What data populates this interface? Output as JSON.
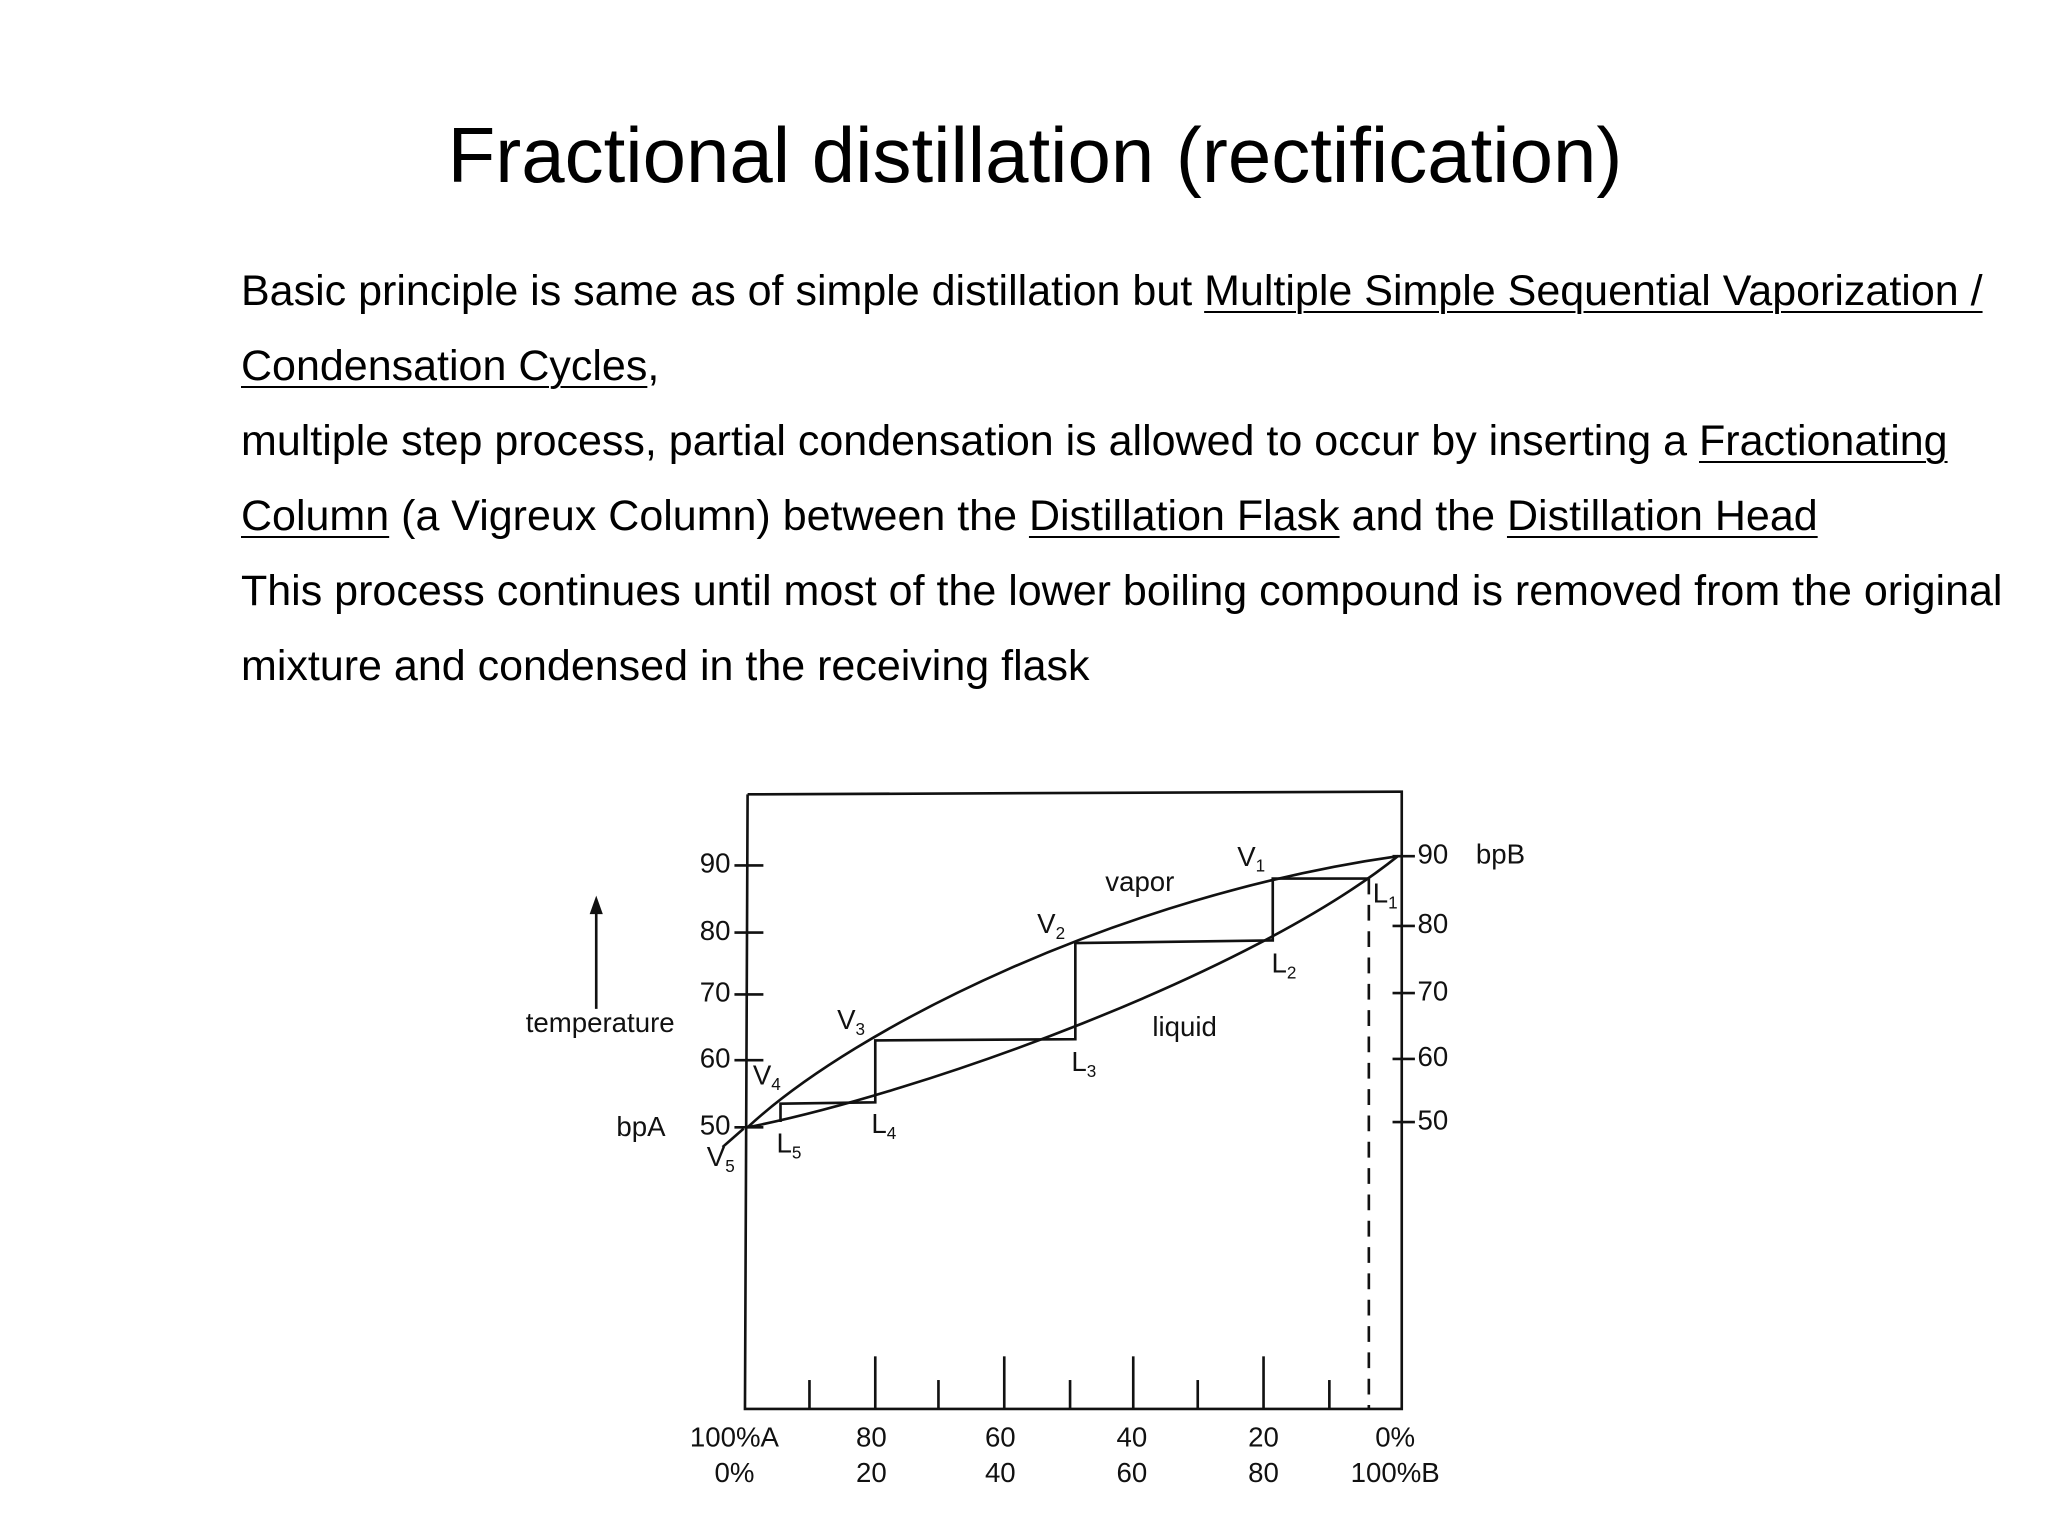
{
  "title": "Fractional distillation (rectification)",
  "paragraphs": [
    {
      "parts": [
        {
          "text": "Basic principle is same as of simple distillation but "
        },
        {
          "text": "Multiple Simple Sequential Vaporization / Condensation Cycles",
          "underline": true
        },
        {
          "text": ","
        }
      ]
    },
    {
      "parts": [
        {
          "text": "multiple step process, partial condensation is allowed to occur by inserting a "
        },
        {
          "text": "Fractionating Column",
          "underline": true
        },
        {
          "text": " (a Vigreux Column) between the "
        },
        {
          "text": "Distillation Flask",
          "underline": true
        },
        {
          "text": " and the "
        },
        {
          "text": "Distillation Head",
          "underline": true
        }
      ]
    },
    {
      "parts": [
        {
          "text": "This process continues until most of the lower boiling compound is removed from the original mixture and condensed in the receiving flask"
        }
      ]
    }
  ],
  "diagram": {
    "left_ticks": [
      "90",
      "80",
      "70",
      "60",
      "50"
    ],
    "right_ticks": [
      "90",
      "80",
      "70",
      "60",
      "50"
    ],
    "axis_label": "temperature",
    "bp_a": "bpA",
    "bp_b": "bpB",
    "vapor_label": "vapor",
    "liquid_label": "liquid",
    "points": [
      {
        "main": "V",
        "sub": "1"
      },
      {
        "main": "V",
        "sub": "2"
      },
      {
        "main": "V",
        "sub": "3"
      },
      {
        "main": "V",
        "sub": "4"
      },
      {
        "main": "V",
        "sub": "5"
      },
      {
        "main": "L",
        "sub": "1"
      },
      {
        "main": "L",
        "sub": "2"
      },
      {
        "main": "L",
        "sub": "3"
      },
      {
        "main": "L",
        "sub": "4"
      },
      {
        "main": "L",
        "sub": "5"
      }
    ],
    "composition": [
      {
        "a": "100%A",
        "b": "0%"
      },
      {
        "a": "80",
        "b": "20"
      },
      {
        "a": "60",
        "b": "40"
      },
      {
        "a": "40",
        "b": "60"
      },
      {
        "a": "20",
        "b": "80"
      },
      {
        "a": "0%",
        "b": "100%B"
      }
    ]
  }
}
